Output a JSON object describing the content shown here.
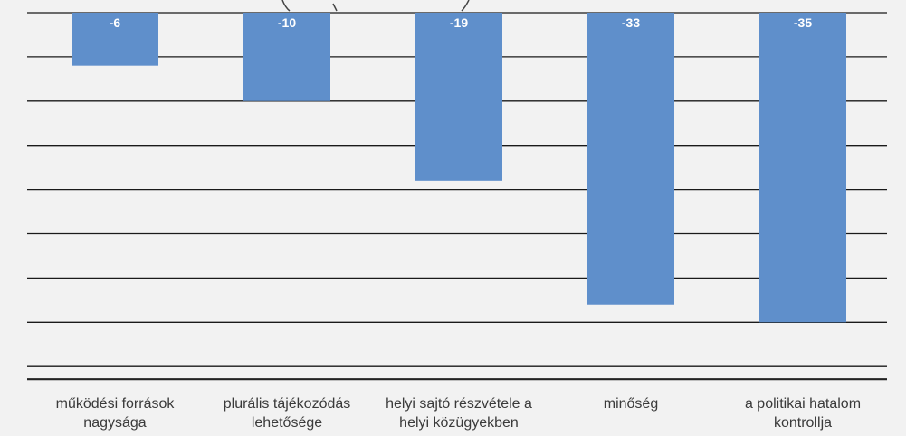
{
  "chart_data": {
    "type": "bar",
    "title": "",
    "xlabel": "",
    "ylabel": "",
    "categories": [
      [
        "működési források",
        "nagysága"
      ],
      [
        "plurális tájékozódás",
        "lehetősége"
      ],
      [
        "helyi sajtó részvétele a",
        "helyi közügyekben"
      ],
      [
        "minőség"
      ],
      [
        "a politikai hatalom",
        "kontrollja"
      ]
    ],
    "values": [
      -6,
      -10,
      -19,
      -33,
      -35
    ],
    "data_labels": [
      "-6",
      "-10",
      "-19",
      "-33",
      "-35"
    ],
    "ylim": [
      -40,
      0
    ],
    "grid": true,
    "legend": "none",
    "bar_color": "#5f8fcb",
    "label_color": "#ffffff",
    "background_color": "#f2f2f2"
  }
}
